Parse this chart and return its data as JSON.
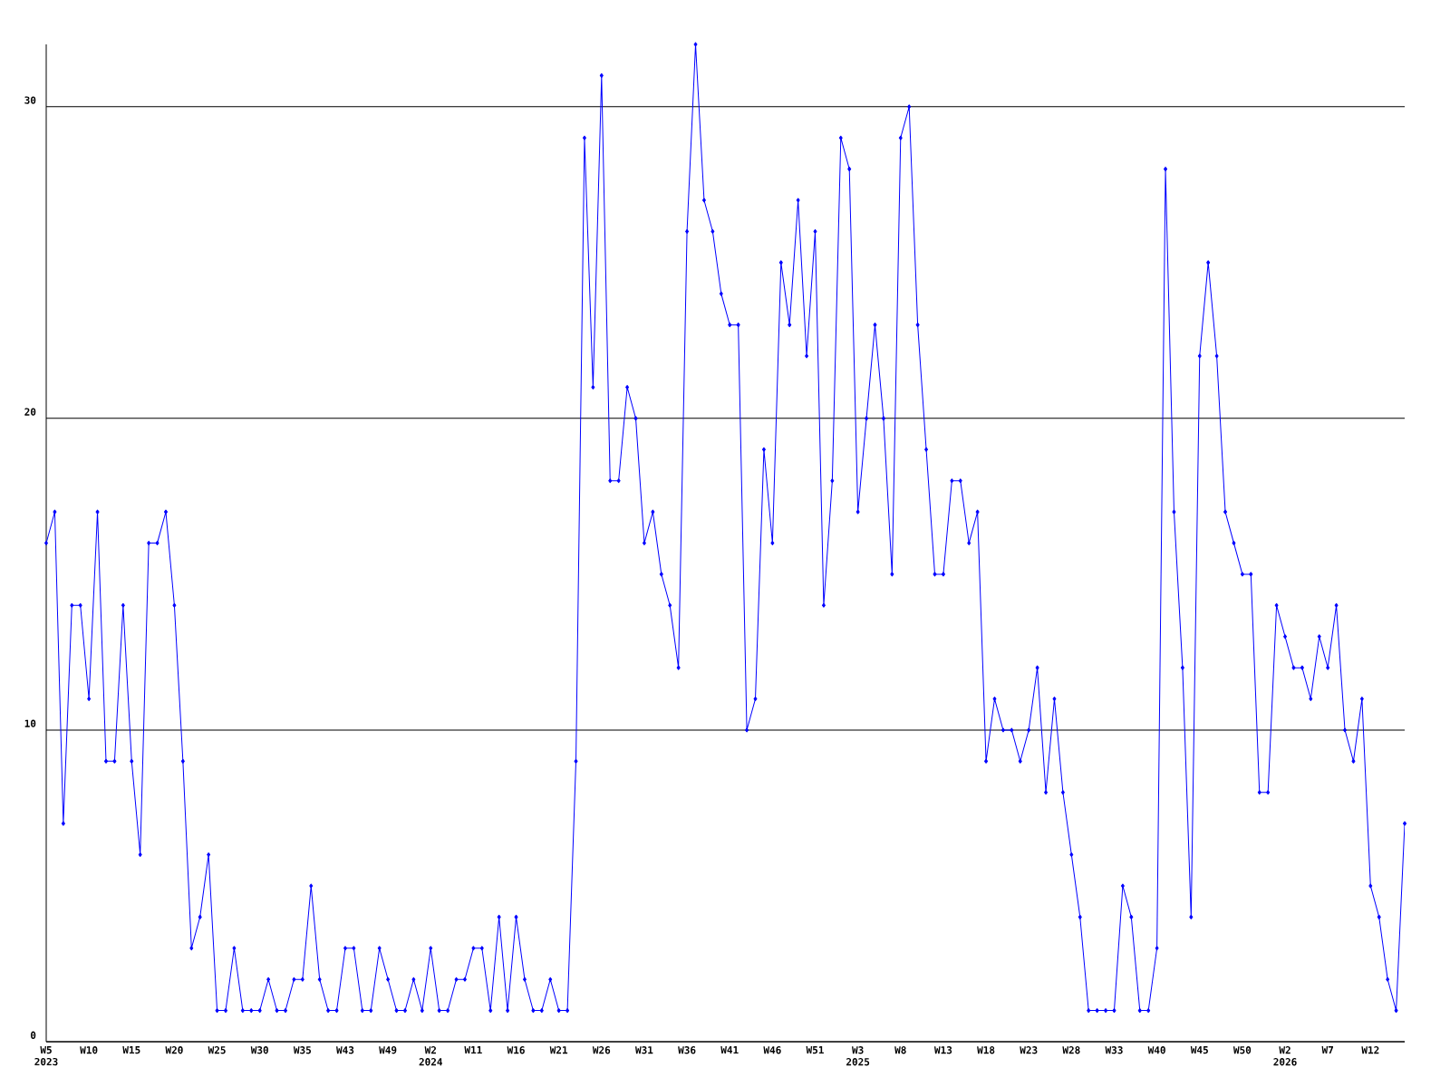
{
  "chart_data": {
    "type": "line",
    "categories": [
      "W5 2023",
      null,
      null,
      null,
      null,
      "W10",
      null,
      null,
      null,
      null,
      "W15",
      null,
      null,
      null,
      null,
      "W20",
      null,
      null,
      null,
      null,
      "W25",
      null,
      null,
      null,
      null,
      "W30",
      null,
      null,
      null,
      null,
      "W35",
      null,
      null,
      null,
      null,
      "W43",
      null,
      null,
      null,
      null,
      "W49",
      null,
      null,
      null,
      null,
      "W2 2024",
      null,
      null,
      null,
      null,
      "W11",
      null,
      null,
      null,
      null,
      "W16",
      null,
      null,
      null,
      null,
      "W21",
      null,
      null,
      null,
      null,
      "W26",
      null,
      null,
      null,
      null,
      "W31",
      null,
      null,
      null,
      null,
      "W36",
      null,
      null,
      null,
      null,
      "W41",
      null,
      null,
      null,
      null,
      "W46",
      null,
      null,
      null,
      null,
      "W51",
      null,
      null,
      null,
      null,
      "W3 2025",
      null,
      null,
      null,
      null,
      "W8",
      null,
      null,
      null,
      null,
      "W13",
      null,
      null,
      null,
      null,
      "W18",
      null,
      null,
      null,
      null,
      "W23",
      null,
      null,
      null,
      null,
      "W28",
      null,
      null,
      null,
      null,
      "W33",
      null,
      null,
      null,
      null,
      "W40",
      null,
      null,
      null,
      null,
      "W45",
      null,
      null,
      null,
      null,
      "W50",
      null,
      null,
      null,
      null,
      "W2 2026",
      null,
      null,
      null,
      null,
      "W7",
      null,
      null,
      null,
      null,
      "W12",
      null,
      null,
      null,
      null
    ],
    "values": [
      16,
      17,
      7,
      14,
      14,
      11,
      17,
      9,
      9,
      14,
      9,
      6,
      16,
      16,
      17,
      14,
      9,
      3,
      4,
      6,
      1,
      1,
      3,
      1,
      1,
      1,
      2,
      1,
      1,
      2,
      2,
      5,
      2,
      1,
      1,
      3,
      3,
      1,
      1,
      3,
      2,
      1,
      1,
      2,
      1,
      3,
      1,
      1,
      2,
      2,
      3,
      3,
      1,
      4,
      1,
      4,
      2,
      1,
      1,
      2,
      1,
      1,
      9,
      29,
      21,
      31,
      18,
      18,
      21,
      20,
      16,
      17,
      15,
      14,
      12,
      26,
      32,
      27,
      26,
      24,
      23,
      23,
      10,
      11,
      19,
      16,
      25,
      23,
      27,
      22,
      26,
      14,
      18,
      29,
      28,
      17,
      20,
      23,
      20,
      15,
      29,
      30,
      23,
      19,
      15,
      15,
      18,
      18,
      16,
      17,
      9,
      11,
      10,
      10,
      9,
      10,
      12,
      8,
      11,
      8,
      6,
      4,
      1,
      1,
      1,
      1,
      5,
      4,
      1,
      1,
      3,
      28,
      17,
      12,
      4,
      22,
      25,
      22,
      17,
      16,
      15,
      15,
      8,
      8,
      14,
      13,
      12,
      12,
      11,
      13,
      12,
      14,
      10,
      9,
      11,
      5,
      4,
      2,
      1,
      7
    ],
    "color": "#0000ff",
    "marker": "diamond",
    "grid": "y",
    "ylim": [
      0,
      32
    ],
    "yticks": [
      0,
      10,
      20,
      30
    ]
  }
}
